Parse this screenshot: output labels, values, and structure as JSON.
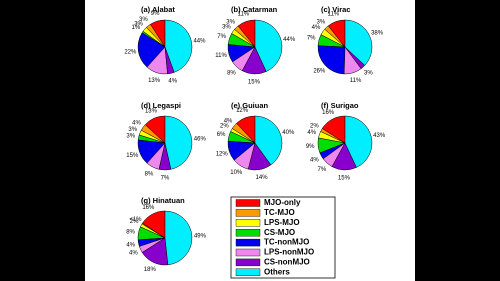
{
  "chart_data": [
    {
      "type": "pie",
      "title": "(a) Alabat",
      "categories": [
        "MJO-only",
        "TC-MJO",
        "LPS-MJO",
        "CS-MJO",
        "TC-nonMJO",
        "LPS-nonMJO",
        "CS-nonMJO",
        "Others"
      ],
      "colors": [
        "#ff0000",
        "#ff9900",
        "#ffff00",
        "#00dd00",
        "#0000ee",
        "#ee88ee",
        "#8800cc",
        "#00eeff"
      ],
      "values": [
        9,
        3,
        3,
        1,
        22,
        13,
        4,
        44
      ],
      "value_labels": [
        "9%",
        "3%",
        "3%",
        "1%",
        "22%",
        "13%",
        "4%",
        "44%"
      ]
    },
    {
      "type": "pie",
      "title": "(b) Catarman",
      "categories": [
        "MJO-only",
        "TC-MJO",
        "LPS-MJO",
        "CS-MJO",
        "TC-nonMJO",
        "LPS-nonMJO",
        "CS-nonMJO",
        "Others"
      ],
      "colors": [
        "#ff0000",
        "#ff9900",
        "#ffff00",
        "#00dd00",
        "#0000ee",
        "#ee88ee",
        "#8800cc",
        "#00eeff"
      ],
      "values": [
        11,
        3,
        3,
        7,
        11,
        8,
        15,
        44
      ],
      "value_labels": [
        "11%",
        "3%",
        "3%",
        "7%",
        "11%",
        "8%",
        "15%",
        "44%"
      ]
    },
    {
      "type": "pie",
      "title": "(c) Virac",
      "categories": [
        "MJO-only",
        "TC-MJO",
        "LPS-MJO",
        "CS-MJO",
        "TC-nonMJO",
        "LPS-nonMJO",
        "CS-nonMJO",
        "Others"
      ],
      "colors": [
        "#ff0000",
        "#ff9900",
        "#ffff00",
        "#00dd00",
        "#0000ee",
        "#ee88ee",
        "#8800cc",
        "#00eeff"
      ],
      "values": [
        11,
        3,
        4,
        7,
        26,
        11,
        3,
        38
      ],
      "value_labels": [
        "11%",
        "3%",
        "4%",
        "7%",
        "26%",
        "11%",
        "3%",
        "38%"
      ]
    },
    {
      "type": "pie",
      "title": "(d) Legaspi",
      "categories": [
        "MJO-only",
        "TC-MJO",
        "LPS-MJO",
        "CS-MJO",
        "TC-nonMJO",
        "LPS-nonMJO",
        "CS-nonMJO",
        "Others"
      ],
      "colors": [
        "#ff0000",
        "#ff9900",
        "#ffff00",
        "#00dd00",
        "#0000ee",
        "#ee88ee",
        "#8800cc",
        "#00eeff"
      ],
      "values": [
        13,
        4,
        3,
        3,
        15,
        8,
        7,
        46
      ],
      "value_labels": [
        "13%",
        "4%",
        "3%",
        "3%",
        "15%",
        "8%",
        "7%",
        "46%"
      ]
    },
    {
      "type": "pie",
      "title": "(e) Guiuan",
      "categories": [
        "MJO-only",
        "TC-MJO",
        "LPS-MJO",
        "CS-MJO",
        "TC-nonMJO",
        "LPS-nonMJO",
        "CS-nonMJO",
        "Others"
      ],
      "colors": [
        "#ff0000",
        "#ff9900",
        "#ffff00",
        "#00dd00",
        "#0000ee",
        "#ee88ee",
        "#8800cc",
        "#00eeff"
      ],
      "values": [
        12,
        4,
        2,
        6,
        12,
        10,
        14,
        40
      ],
      "value_labels": [
        "12%",
        "4%",
        "2%",
        "6%",
        "12%",
        "10%",
        "14%",
        "40%"
      ]
    },
    {
      "type": "pie",
      "title": "(f) Surigao",
      "categories": [
        "MJO-only",
        "TC-MJO",
        "LPS-MJO",
        "CS-MJO",
        "TC-nonMJO",
        "LPS-nonMJO",
        "CS-nonMJO",
        "Others"
      ],
      "colors": [
        "#ff0000",
        "#ff9900",
        "#ffff00",
        "#00dd00",
        "#0000ee",
        "#ee88ee",
        "#8800cc",
        "#00eeff"
      ],
      "values": [
        16,
        2,
        4,
        9,
        4,
        7,
        15,
        43
      ],
      "value_labels": [
        "16%",
        "2%",
        "4%",
        "9%",
        "4%",
        "7%",
        "15%",
        "43%"
      ]
    },
    {
      "type": "pie",
      "title": "(g) Hinatuan",
      "categories": [
        "MJO-only",
        "TC-MJO",
        "LPS-MJO",
        "CS-MJO",
        "TC-nonMJO",
        "LPS-nonMJO",
        "CS-nonMJO",
        "Others"
      ],
      "colors": [
        "#ff0000",
        "#ff9900",
        "#ffff00",
        "#00dd00",
        "#0000ee",
        "#ee88ee",
        "#8800cc",
        "#00eeff"
      ],
      "values": [
        16,
        0.5,
        2,
        8,
        4,
        4,
        18,
        49
      ],
      "value_labels": [
        "16%",
        "<1%",
        "2%",
        "8%",
        "4%",
        "4%",
        "18%",
        "49%"
      ]
    }
  ]
}
